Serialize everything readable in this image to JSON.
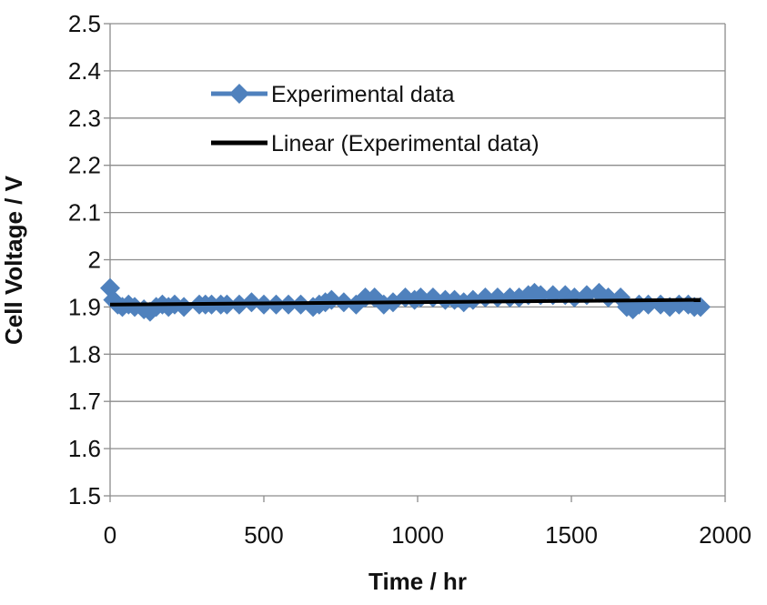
{
  "chart_data": {
    "type": "line",
    "title": "",
    "xlabel": "Time / hr",
    "ylabel": "Cell Voltage / V",
    "xlim": [
      0,
      2000
    ],
    "ylim": [
      1.5,
      2.5
    ],
    "x_ticks": [
      "0",
      "500",
      "1000",
      "1500",
      "2000"
    ],
    "y_ticks": [
      "1.5",
      "1.6",
      "1.7",
      "1.8",
      "1.9",
      "2",
      "2.1",
      "2.2",
      "2.3",
      "2.4",
      "2.5"
    ],
    "grid": "horizontal",
    "legend_position": "top-center",
    "series": [
      {
        "name": "Experimental data",
        "style": "line-diamond",
        "color": "#4f81bd",
        "x": [
          0,
          10,
          25,
          40,
          60,
          80,
          110,
          130,
          150,
          170,
          190,
          210,
          240,
          290,
          310,
          330,
          360,
          380,
          420,
          460,
          500,
          540,
          580,
          620,
          660,
          680,
          700,
          720,
          760,
          800,
          830,
          860,
          890,
          920,
          960,
          990,
          1010,
          1050,
          1090,
          1120,
          1150,
          1180,
          1220,
          1260,
          1300,
          1330,
          1360,
          1380,
          1400,
          1440,
          1480,
          1510,
          1550,
          1590,
          1620,
          1660,
          1680,
          1700,
          1720,
          1750,
          1790,
          1820,
          1850,
          1880,
          1900,
          1920
        ],
        "y": [
          1.94,
          1.915,
          1.905,
          1.9,
          1.905,
          1.9,
          1.895,
          1.89,
          1.9,
          1.905,
          1.9,
          1.905,
          1.9,
          1.905,
          1.905,
          1.905,
          1.905,
          1.905,
          1.905,
          1.91,
          1.905,
          1.905,
          1.905,
          1.905,
          1.9,
          1.905,
          1.91,
          1.915,
          1.91,
          1.905,
          1.92,
          1.92,
          1.905,
          1.91,
          1.92,
          1.915,
          1.92,
          1.92,
          1.915,
          1.915,
          1.91,
          1.915,
          1.92,
          1.92,
          1.92,
          1.92,
          1.925,
          1.93,
          1.925,
          1.925,
          1.925,
          1.92,
          1.925,
          1.93,
          1.92,
          1.92,
          1.9,
          1.895,
          1.905,
          1.905,
          1.905,
          1.9,
          1.905,
          1.905,
          1.9,
          1.9
        ]
      },
      {
        "name": "Linear (Experimental data)",
        "style": "line",
        "color": "#000000",
        "x": [
          0,
          1920
        ],
        "y": [
          1.905,
          1.915
        ]
      }
    ]
  }
}
